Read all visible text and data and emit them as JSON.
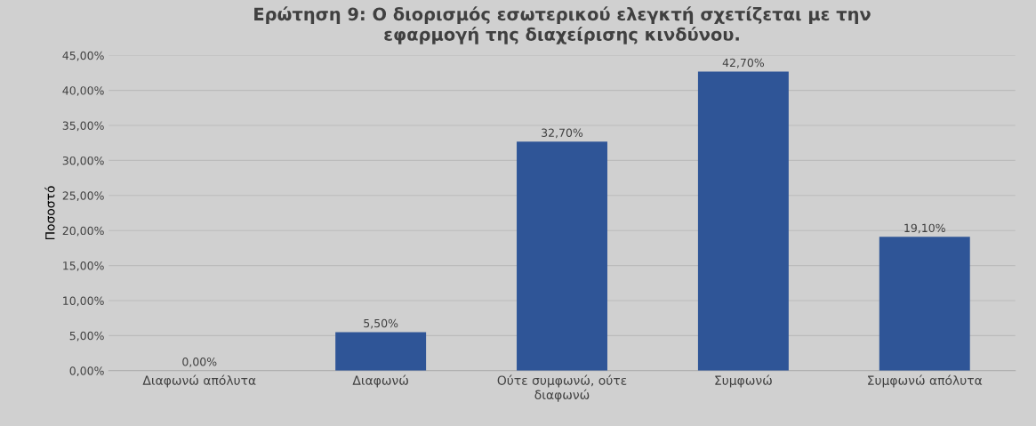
{
  "chart_data": {
    "type": "bar",
    "title": "Ερώτηση 9: Ο διορισμός εσωτερικού ελεγκτή σχετίζεται με την\nεφαρμογή της διαχείρισης κινδύνου.",
    "ylabel": "Ποσοστό",
    "categories": [
      "Διαφωνώ απόλυτα",
      "Διαφωνώ",
      "Ούτε συμφωνώ, ούτε\nδιαφωνώ",
      "Συμφωνώ",
      "Συμφωνώ απόλυτα"
    ],
    "values": [
      0,
      5.5,
      32.7,
      42.7,
      19.1
    ],
    "value_labels": [
      "0,00%",
      "5,50%",
      "32,70%",
      "42,70%",
      "19,10%"
    ],
    "color": "#2f5597",
    "ylim": [
      0,
      45
    ],
    "yticks": [
      {
        "value": 0,
        "label": "0,00%"
      },
      {
        "value": 5,
        "label": "5,00%"
      },
      {
        "value": 10,
        "label": "10,00%"
      },
      {
        "value": 15,
        "label": "15,00%"
      },
      {
        "value": 20,
        "label": "20,00%"
      },
      {
        "value": 25,
        "label": "25,00%"
      },
      {
        "value": 30,
        "label": "30,00%"
      },
      {
        "value": 35,
        "label": "35,00%"
      },
      {
        "value": 40,
        "label": "40,00%"
      },
      {
        "value": 45,
        "label": "45,00%"
      }
    ],
    "grid": "y"
  }
}
